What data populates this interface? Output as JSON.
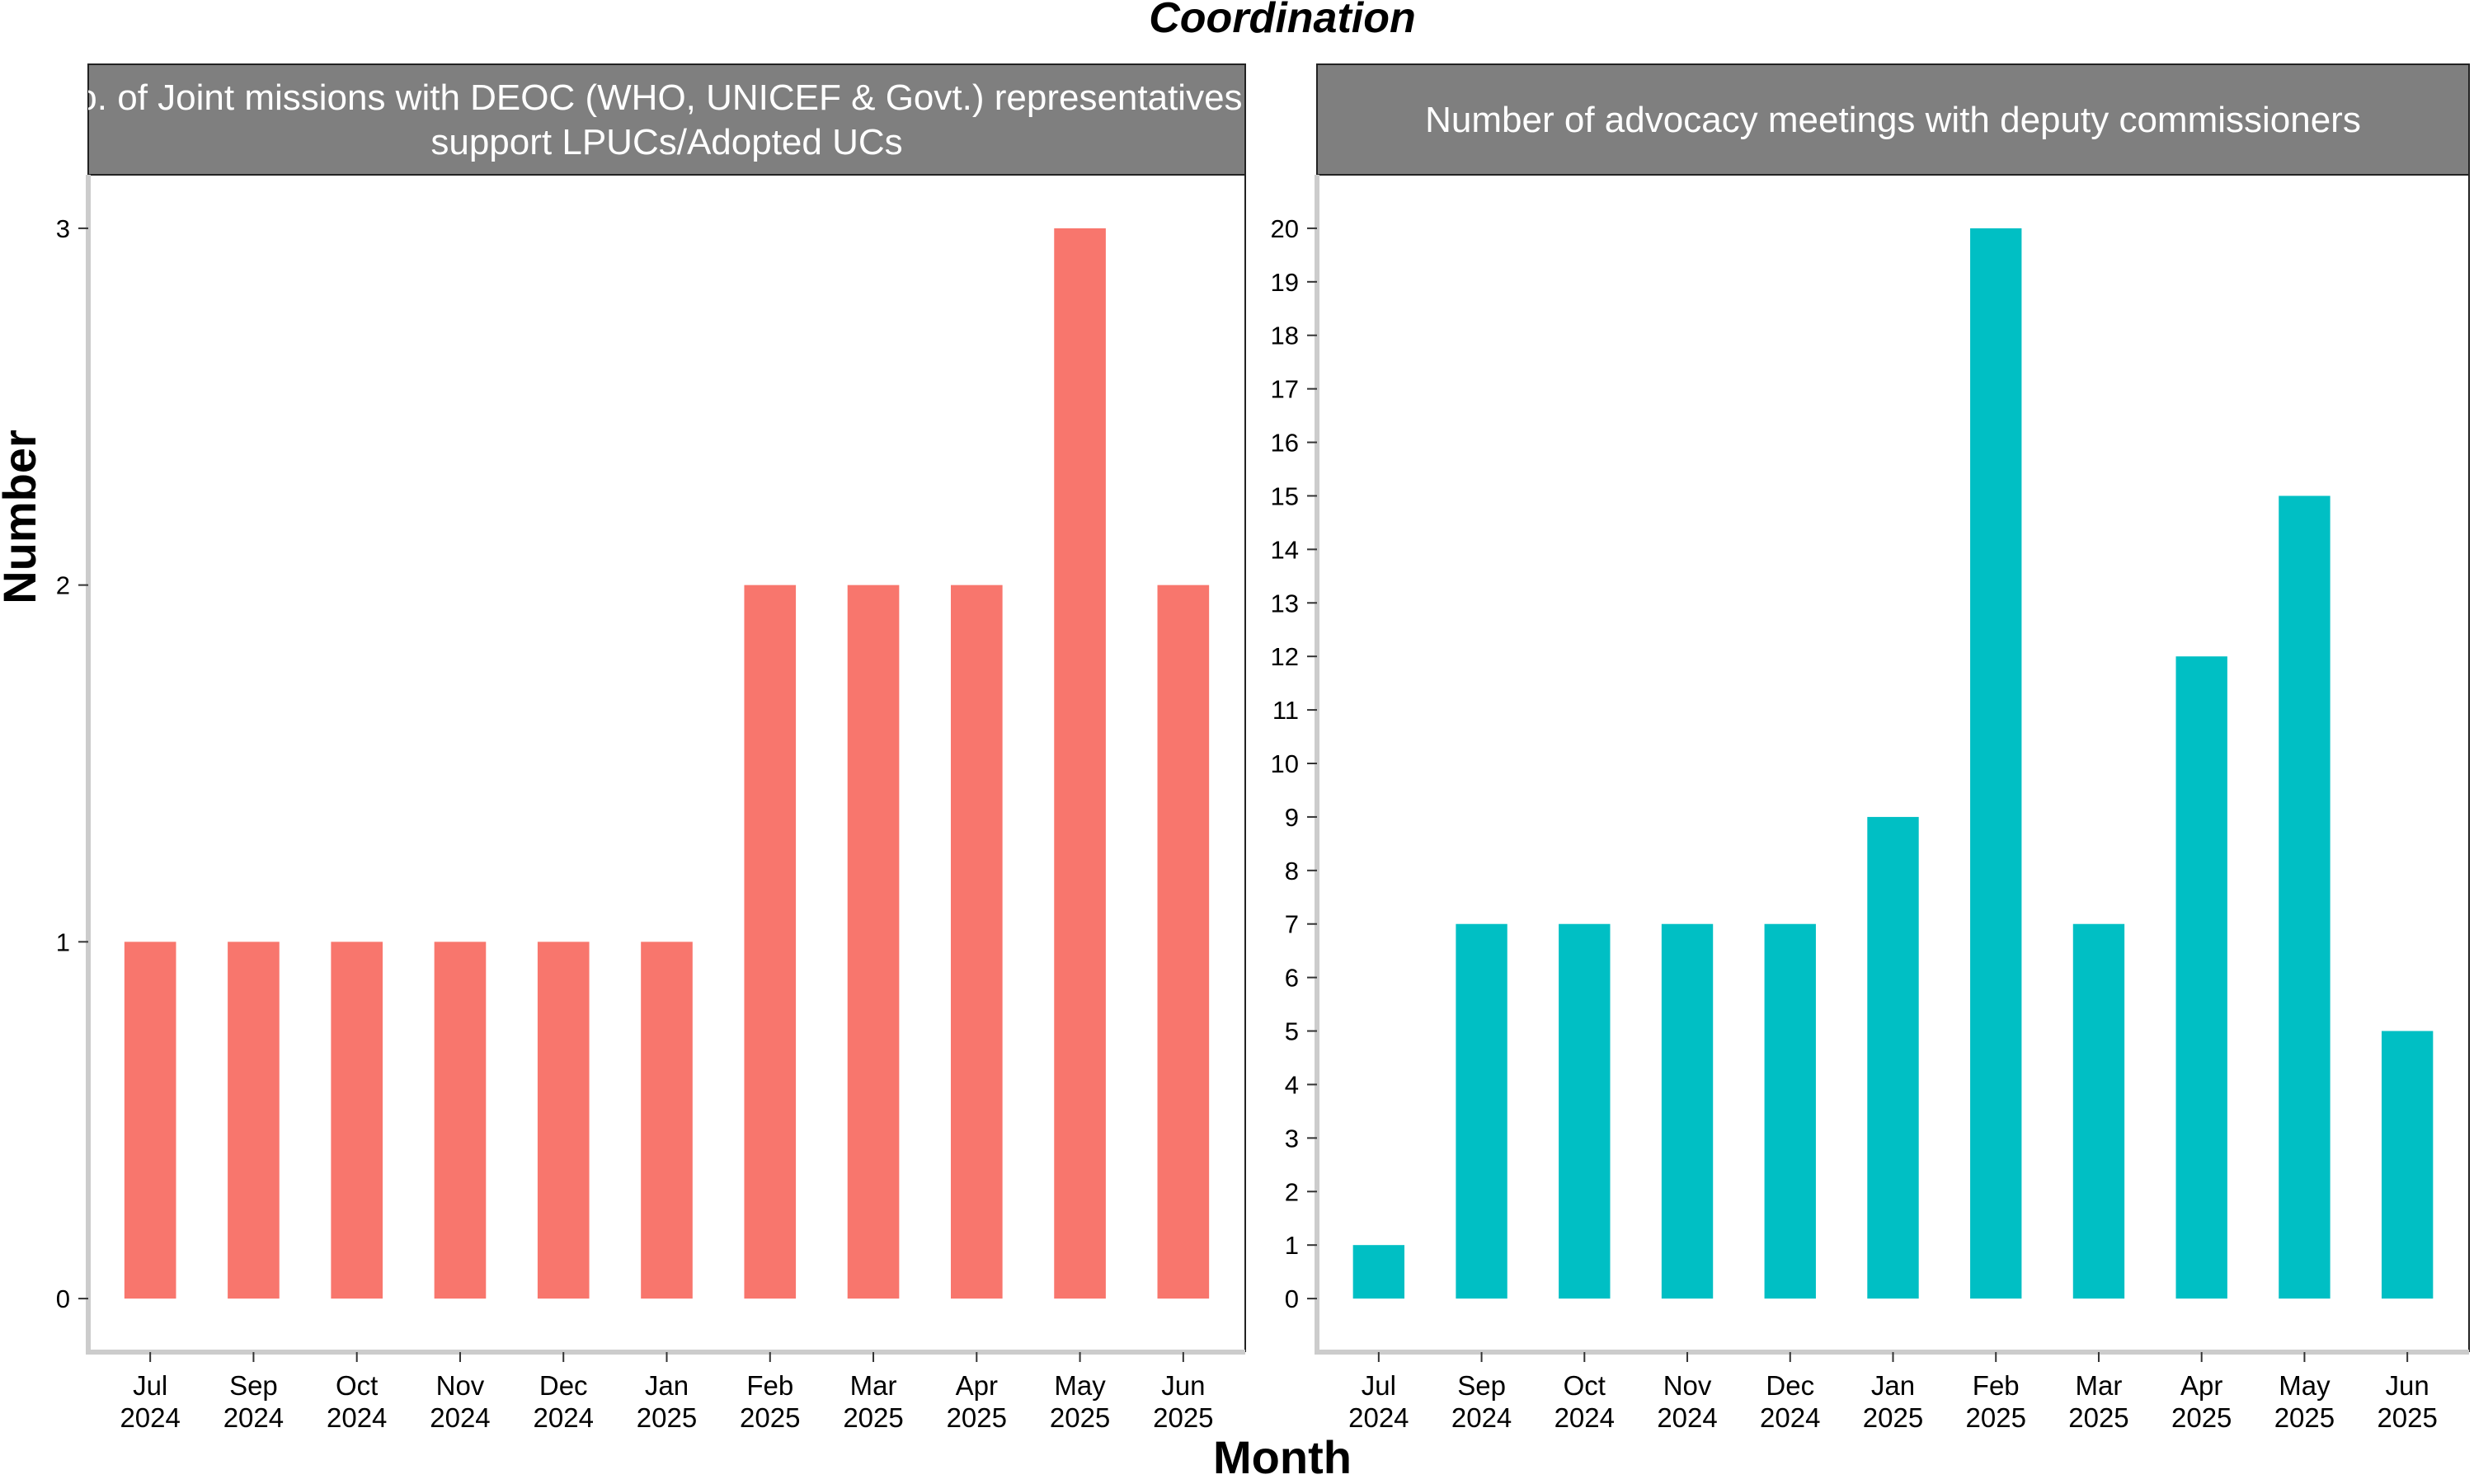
{
  "title": "Coordination",
  "xlabel": "Month",
  "ylabel": "Number",
  "colors": {
    "left": "#F8766D",
    "right": "#00BFC4",
    "strip": "#7f7f7f",
    "axis": "#cccccc"
  },
  "chart_data": [
    {
      "type": "bar",
      "title_lines": [
        "No. of Joint missions with DEOC (WHO, UNICEF & Govt.) representatives to",
        "support LPUCs/Adopted UCs"
      ],
      "categories": [
        [
          "Jul",
          "2024"
        ],
        [
          "Sep",
          "2024"
        ],
        [
          "Oct",
          "2024"
        ],
        [
          "Nov",
          "2024"
        ],
        [
          "Dec",
          "2024"
        ],
        [
          "Jan",
          "2025"
        ],
        [
          "Feb",
          "2025"
        ],
        [
          "Mar",
          "2025"
        ],
        [
          "Apr",
          "2025"
        ],
        [
          "May",
          "2025"
        ],
        [
          "Jun",
          "2025"
        ]
      ],
      "values": [
        1,
        1,
        1,
        1,
        1,
        1,
        2,
        2,
        2,
        3,
        2
      ],
      "yticks": [
        "0",
        "1",
        "2",
        "3"
      ],
      "ylim": [
        -0.15,
        3.15
      ]
    },
    {
      "type": "bar",
      "title_lines": [
        "Number of advocacy meetings with deputy commissioners"
      ],
      "categories": [
        [
          "Jul",
          "2024"
        ],
        [
          "Sep",
          "2024"
        ],
        [
          "Oct",
          "2024"
        ],
        [
          "Nov",
          "2024"
        ],
        [
          "Dec",
          "2024"
        ],
        [
          "Jan",
          "2025"
        ],
        [
          "Feb",
          "2025"
        ],
        [
          "Mar",
          "2025"
        ],
        [
          "Apr",
          "2025"
        ],
        [
          "May",
          "2025"
        ],
        [
          "Jun",
          "2025"
        ]
      ],
      "values": [
        1,
        7,
        7,
        7,
        7,
        9,
        20,
        7,
        12,
        15,
        5
      ],
      "yticks": [
        "0",
        "1",
        "2",
        "3",
        "4",
        "5",
        "6",
        "7",
        "8",
        "9",
        "10",
        "11",
        "12",
        "13",
        "14",
        "15",
        "16",
        "17",
        "18",
        "19",
        "20"
      ],
      "ylim": [
        -1,
        21
      ]
    }
  ]
}
